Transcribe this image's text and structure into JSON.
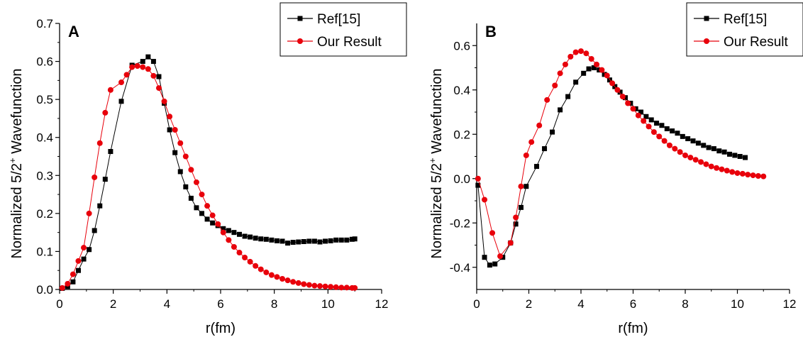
{
  "chart_data": [
    {
      "type": "line",
      "panel_label": "A",
      "xlabel": "r(fm)",
      "ylabel": "Normalized 5/2+ Wavefunction",
      "ylabel_main": "Normalized 5/2",
      "ylabel_sup": "+",
      "ylabel_tail": " Wavefunction",
      "xlim": [
        0,
        12
      ],
      "ylim": [
        0,
        0.7
      ],
      "xticks": [
        0,
        2,
        4,
        6,
        8,
        10,
        12
      ],
      "xtick_labels": [
        "0",
        "2",
        "4",
        "6",
        "8",
        "10",
        "12"
      ],
      "yticks": [
        0,
        0.1,
        0.2,
        0.3,
        0.4,
        0.5,
        0.6,
        0.7
      ],
      "ytick_labels": [
        "0.0",
        "0.1",
        "0.2",
        "0.3",
        "0.4",
        "0.5",
        "0.6",
        "0.7"
      ],
      "grid": false,
      "legend_position": "top-right",
      "series": [
        {
          "name": "Ref[15]",
          "color": "#000000",
          "marker": "square",
          "x": [
            0.1,
            0.3,
            0.5,
            0.7,
            0.9,
            1.1,
            1.3,
            1.5,
            1.7,
            1.9,
            2.3,
            2.7,
            3.1,
            3.3,
            3.5,
            3.7,
            3.9,
            4.1,
            4.3,
            4.5,
            4.7,
            4.9,
            5.1,
            5.3,
            5.5,
            5.7,
            5.9,
            6.1,
            6.3,
            6.5,
            6.7,
            6.9,
            7.1,
            7.3,
            7.5,
            7.7,
            7.9,
            8.1,
            8.3,
            8.5,
            8.7,
            8.9,
            9.1,
            9.3,
            9.5,
            9.7,
            9.9,
            10.1,
            10.3,
            10.5,
            10.7,
            10.9,
            11.0
          ],
          "y": [
            0.003,
            0.008,
            0.02,
            0.05,
            0.08,
            0.105,
            0.155,
            0.22,
            0.29,
            0.363,
            0.495,
            0.59,
            0.6,
            0.612,
            0.6,
            0.56,
            0.49,
            0.42,
            0.36,
            0.31,
            0.27,
            0.24,
            0.215,
            0.2,
            0.185,
            0.175,
            0.168,
            0.16,
            0.155,
            0.15,
            0.145,
            0.14,
            0.138,
            0.135,
            0.133,
            0.132,
            0.13,
            0.128,
            0.127,
            0.122,
            0.124,
            0.125,
            0.126,
            0.127,
            0.127,
            0.125,
            0.127,
            0.128,
            0.13,
            0.13,
            0.13,
            0.132,
            0.133
          ]
        },
        {
          "name": "Our Result",
          "color": "#e8000b",
          "marker": "circle",
          "x": [
            0.1,
            0.3,
            0.5,
            0.7,
            0.9,
            1.1,
            1.3,
            1.5,
            1.7,
            1.9,
            2.3,
            2.5,
            2.7,
            2.9,
            3.1,
            3.3,
            3.5,
            3.7,
            3.9,
            4.1,
            4.3,
            4.5,
            4.7,
            4.9,
            5.1,
            5.3,
            5.5,
            5.7,
            5.9,
            6.1,
            6.3,
            6.5,
            6.7,
            6.9,
            7.1,
            7.3,
            7.5,
            7.7,
            7.9,
            8.1,
            8.3,
            8.5,
            8.7,
            8.9,
            9.1,
            9.3,
            9.5,
            9.7,
            9.9,
            10.1,
            10.3,
            10.5,
            10.7,
            10.9,
            11.0
          ],
          "y": [
            0.004,
            0.015,
            0.04,
            0.075,
            0.11,
            0.2,
            0.295,
            0.385,
            0.465,
            0.525,
            0.545,
            0.565,
            0.585,
            0.588,
            0.585,
            0.58,
            0.562,
            0.53,
            0.495,
            0.455,
            0.42,
            0.385,
            0.35,
            0.315,
            0.282,
            0.25,
            0.22,
            0.195,
            0.172,
            0.15,
            0.13,
            0.112,
            0.097,
            0.084,
            0.073,
            0.062,
            0.053,
            0.045,
            0.038,
            0.033,
            0.028,
            0.024,
            0.02,
            0.017,
            0.014,
            0.012,
            0.01,
            0.009,
            0.008,
            0.007,
            0.006,
            0.005,
            0.005,
            0.004,
            0.004
          ]
        }
      ]
    },
    {
      "type": "line",
      "panel_label": "B",
      "xlabel": "r(fm)",
      "ylabel": "Normalized 5/2+ Wavefunction",
      "ylabel_main": "Normalized 5/2",
      "ylabel_sup": "+",
      "ylabel_tail": " Wavefunction",
      "xlim": [
        0,
        12
      ],
      "ylim": [
        -0.5,
        0.7
      ],
      "xticks": [
        0,
        2,
        4,
        6,
        8,
        10,
        12
      ],
      "xtick_labels": [
        "0",
        "2",
        "4",
        "6",
        "8",
        "10",
        "12"
      ],
      "yticks": [
        -0.4,
        -0.2,
        0,
        0.2,
        0.4,
        0.6
      ],
      "ytick_labels": [
        "-0.4",
        "-0.2",
        "0.0",
        "0.2",
        "0.4",
        "0.6"
      ],
      "grid": false,
      "legend_position": "top-right",
      "series": [
        {
          "name": "Ref[15]",
          "color": "#000000",
          "marker": "square",
          "x": [
            0.05,
            0.3,
            0.5,
            0.7,
            1.0,
            1.3,
            1.5,
            1.7,
            1.9,
            2.3,
            2.6,
            2.9,
            3.2,
            3.5,
            3.8,
            4.1,
            4.3,
            4.5,
            4.7,
            4.9,
            5.1,
            5.3,
            5.5,
            5.7,
            5.9,
            6.1,
            6.3,
            6.5,
            6.7,
            6.9,
            7.1,
            7.3,
            7.5,
            7.7,
            7.9,
            8.1,
            8.3,
            8.5,
            8.7,
            8.9,
            9.1,
            9.3,
            9.5,
            9.7,
            9.9,
            10.1,
            10.3
          ],
          "y": [
            -0.03,
            -0.355,
            -0.39,
            -0.385,
            -0.355,
            -0.29,
            -0.205,
            -0.13,
            -0.035,
            0.055,
            0.135,
            0.21,
            0.31,
            0.37,
            0.435,
            0.475,
            0.495,
            0.5,
            0.49,
            0.47,
            0.445,
            0.415,
            0.39,
            0.365,
            0.34,
            0.315,
            0.3,
            0.28,
            0.265,
            0.25,
            0.24,
            0.225,
            0.215,
            0.205,
            0.19,
            0.18,
            0.17,
            0.16,
            0.15,
            0.14,
            0.135,
            0.125,
            0.12,
            0.11,
            0.105,
            0.1,
            0.095
          ]
        },
        {
          "name": "Our Result",
          "color": "#e8000b",
          "marker": "circle",
          "x": [
            0.05,
            0.3,
            0.6,
            0.9,
            1.3,
            1.5,
            1.7,
            1.9,
            2.1,
            2.4,
            2.7,
            3.0,
            3.2,
            3.4,
            3.6,
            3.8,
            4.0,
            4.2,
            4.4,
            4.6,
            4.8,
            5.0,
            5.2,
            5.4,
            5.6,
            5.8,
            6.0,
            6.2,
            6.4,
            6.6,
            6.8,
            7.0,
            7.2,
            7.4,
            7.6,
            7.8,
            8.0,
            8.2,
            8.4,
            8.6,
            8.8,
            9.0,
            9.2,
            9.4,
            9.6,
            9.8,
            10.0,
            10.2,
            10.4,
            10.6,
            10.8,
            11.0
          ],
          "y": [
            0.0,
            -0.095,
            -0.245,
            -0.35,
            -0.29,
            -0.175,
            -0.035,
            0.105,
            0.165,
            0.24,
            0.355,
            0.42,
            0.475,
            0.515,
            0.55,
            0.57,
            0.575,
            0.565,
            0.54,
            0.515,
            0.49,
            0.465,
            0.43,
            0.4,
            0.37,
            0.34,
            0.315,
            0.285,
            0.26,
            0.235,
            0.21,
            0.19,
            0.17,
            0.15,
            0.135,
            0.12,
            0.105,
            0.095,
            0.085,
            0.075,
            0.065,
            0.055,
            0.048,
            0.042,
            0.036,
            0.03,
            0.025,
            0.022,
            0.018,
            0.015,
            0.012,
            0.01
          ]
        }
      ]
    }
  ]
}
